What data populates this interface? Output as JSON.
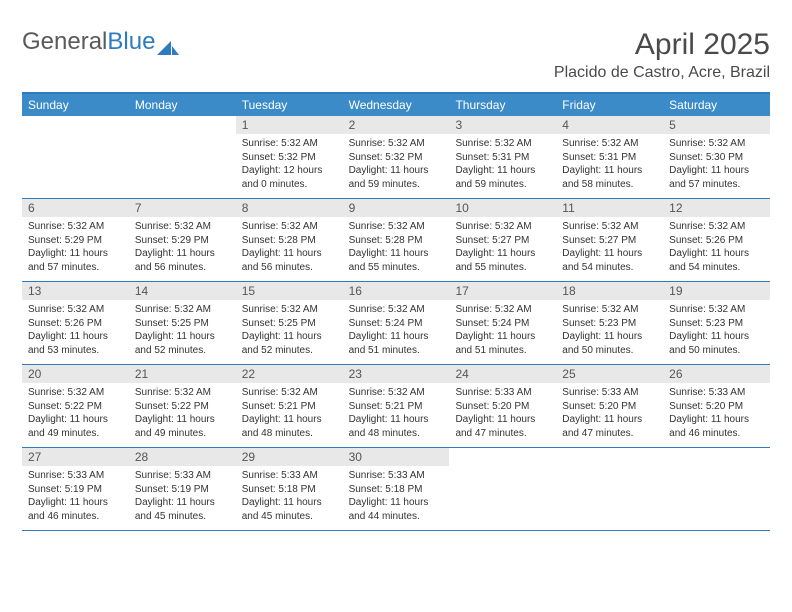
{
  "logo": {
    "part1": "General",
    "part2": "Blue"
  },
  "title": "April 2025",
  "subtitle": "Placido de Castro, Acre, Brazil",
  "colors": {
    "header_bg": "#3b8bc9",
    "header_border": "#2f7bbf",
    "daynum_bg": "#e8e8e8",
    "text": "#333333",
    "title_text": "#4a4a4a"
  },
  "weekdays": [
    "Sunday",
    "Monday",
    "Tuesday",
    "Wednesday",
    "Thursday",
    "Friday",
    "Saturday"
  ],
  "weeks": [
    [
      {
        "empty": true
      },
      {
        "empty": true
      },
      {
        "num": "1",
        "sunrise": "Sunrise: 5:32 AM",
        "sunset": "Sunset: 5:32 PM",
        "daylight": "Daylight: 12 hours and 0 minutes."
      },
      {
        "num": "2",
        "sunrise": "Sunrise: 5:32 AM",
        "sunset": "Sunset: 5:32 PM",
        "daylight": "Daylight: 11 hours and 59 minutes."
      },
      {
        "num": "3",
        "sunrise": "Sunrise: 5:32 AM",
        "sunset": "Sunset: 5:31 PM",
        "daylight": "Daylight: 11 hours and 59 minutes."
      },
      {
        "num": "4",
        "sunrise": "Sunrise: 5:32 AM",
        "sunset": "Sunset: 5:31 PM",
        "daylight": "Daylight: 11 hours and 58 minutes."
      },
      {
        "num": "5",
        "sunrise": "Sunrise: 5:32 AM",
        "sunset": "Sunset: 5:30 PM",
        "daylight": "Daylight: 11 hours and 57 minutes."
      }
    ],
    [
      {
        "num": "6",
        "sunrise": "Sunrise: 5:32 AM",
        "sunset": "Sunset: 5:29 PM",
        "daylight": "Daylight: 11 hours and 57 minutes."
      },
      {
        "num": "7",
        "sunrise": "Sunrise: 5:32 AM",
        "sunset": "Sunset: 5:29 PM",
        "daylight": "Daylight: 11 hours and 56 minutes."
      },
      {
        "num": "8",
        "sunrise": "Sunrise: 5:32 AM",
        "sunset": "Sunset: 5:28 PM",
        "daylight": "Daylight: 11 hours and 56 minutes."
      },
      {
        "num": "9",
        "sunrise": "Sunrise: 5:32 AM",
        "sunset": "Sunset: 5:28 PM",
        "daylight": "Daylight: 11 hours and 55 minutes."
      },
      {
        "num": "10",
        "sunrise": "Sunrise: 5:32 AM",
        "sunset": "Sunset: 5:27 PM",
        "daylight": "Daylight: 11 hours and 55 minutes."
      },
      {
        "num": "11",
        "sunrise": "Sunrise: 5:32 AM",
        "sunset": "Sunset: 5:27 PM",
        "daylight": "Daylight: 11 hours and 54 minutes."
      },
      {
        "num": "12",
        "sunrise": "Sunrise: 5:32 AM",
        "sunset": "Sunset: 5:26 PM",
        "daylight": "Daylight: 11 hours and 54 minutes."
      }
    ],
    [
      {
        "num": "13",
        "sunrise": "Sunrise: 5:32 AM",
        "sunset": "Sunset: 5:26 PM",
        "daylight": "Daylight: 11 hours and 53 minutes."
      },
      {
        "num": "14",
        "sunrise": "Sunrise: 5:32 AM",
        "sunset": "Sunset: 5:25 PM",
        "daylight": "Daylight: 11 hours and 52 minutes."
      },
      {
        "num": "15",
        "sunrise": "Sunrise: 5:32 AM",
        "sunset": "Sunset: 5:25 PM",
        "daylight": "Daylight: 11 hours and 52 minutes."
      },
      {
        "num": "16",
        "sunrise": "Sunrise: 5:32 AM",
        "sunset": "Sunset: 5:24 PM",
        "daylight": "Daylight: 11 hours and 51 minutes."
      },
      {
        "num": "17",
        "sunrise": "Sunrise: 5:32 AM",
        "sunset": "Sunset: 5:24 PM",
        "daylight": "Daylight: 11 hours and 51 minutes."
      },
      {
        "num": "18",
        "sunrise": "Sunrise: 5:32 AM",
        "sunset": "Sunset: 5:23 PM",
        "daylight": "Daylight: 11 hours and 50 minutes."
      },
      {
        "num": "19",
        "sunrise": "Sunrise: 5:32 AM",
        "sunset": "Sunset: 5:23 PM",
        "daylight": "Daylight: 11 hours and 50 minutes."
      }
    ],
    [
      {
        "num": "20",
        "sunrise": "Sunrise: 5:32 AM",
        "sunset": "Sunset: 5:22 PM",
        "daylight": "Daylight: 11 hours and 49 minutes."
      },
      {
        "num": "21",
        "sunrise": "Sunrise: 5:32 AM",
        "sunset": "Sunset: 5:22 PM",
        "daylight": "Daylight: 11 hours and 49 minutes."
      },
      {
        "num": "22",
        "sunrise": "Sunrise: 5:32 AM",
        "sunset": "Sunset: 5:21 PM",
        "daylight": "Daylight: 11 hours and 48 minutes."
      },
      {
        "num": "23",
        "sunrise": "Sunrise: 5:32 AM",
        "sunset": "Sunset: 5:21 PM",
        "daylight": "Daylight: 11 hours and 48 minutes."
      },
      {
        "num": "24",
        "sunrise": "Sunrise: 5:33 AM",
        "sunset": "Sunset: 5:20 PM",
        "daylight": "Daylight: 11 hours and 47 minutes."
      },
      {
        "num": "25",
        "sunrise": "Sunrise: 5:33 AM",
        "sunset": "Sunset: 5:20 PM",
        "daylight": "Daylight: 11 hours and 47 minutes."
      },
      {
        "num": "26",
        "sunrise": "Sunrise: 5:33 AM",
        "sunset": "Sunset: 5:20 PM",
        "daylight": "Daylight: 11 hours and 46 minutes."
      }
    ],
    [
      {
        "num": "27",
        "sunrise": "Sunrise: 5:33 AM",
        "sunset": "Sunset: 5:19 PM",
        "daylight": "Daylight: 11 hours and 46 minutes."
      },
      {
        "num": "28",
        "sunrise": "Sunrise: 5:33 AM",
        "sunset": "Sunset: 5:19 PM",
        "daylight": "Daylight: 11 hours and 45 minutes."
      },
      {
        "num": "29",
        "sunrise": "Sunrise: 5:33 AM",
        "sunset": "Sunset: 5:18 PM",
        "daylight": "Daylight: 11 hours and 45 minutes."
      },
      {
        "num": "30",
        "sunrise": "Sunrise: 5:33 AM",
        "sunset": "Sunset: 5:18 PM",
        "daylight": "Daylight: 11 hours and 44 minutes."
      },
      {
        "empty": true
      },
      {
        "empty": true
      },
      {
        "empty": true
      }
    ]
  ]
}
